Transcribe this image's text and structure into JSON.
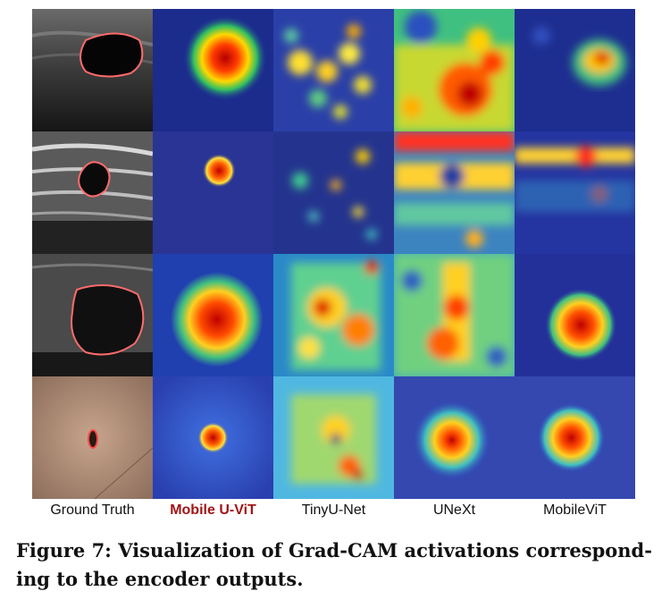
{
  "figure": {
    "columns": [
      {
        "label": "Ground Truth",
        "highlight": false
      },
      {
        "label": "Mobile U-ViT",
        "highlight": true
      },
      {
        "label": "TinyU-Net",
        "highlight": false
      },
      {
        "label": "UNeXt",
        "highlight": false
      },
      {
        "label": "MobileViT",
        "highlight": false
      }
    ],
    "caption_line1": "Figure 7: Visualization of Grad-CAM activations correspond-",
    "caption_line2": "ing to the encoder outputs."
  },
  "colors": {
    "ground_truth_contour": "#ff6b6b",
    "heat_low": "#1a2a9a",
    "heat_high": "#cc0000",
    "label_highlight": "#a31515"
  }
}
